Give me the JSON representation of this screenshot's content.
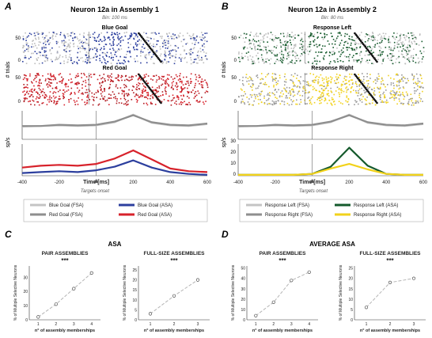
{
  "panel_letters": [
    "A",
    "B",
    "C",
    "D"
  ],
  "legend_colors": {
    "light_gray": "#c4c4c4",
    "dark_gray": "#8e8e8e",
    "blue": "#2c3f9e",
    "red": "#d7222b",
    "green": "#155a2c",
    "yellow": "#f2d21b"
  },
  "panel_A": {
    "title": "Neuron 12a in Assembly 1",
    "bin": "Bin: 100 ms",
    "raster_top_label": "Blue Goal",
    "raster_bottom_label": "Red Goal",
    "raster_ylabel": "# trials",
    "raster_ticks": [
      "50",
      "0"
    ],
    "rate_ylabel": "sp/s",
    "x_ticks": [
      "-400",
      "-200",
      "Time [ms]",
      "200",
      "400",
      "600"
    ],
    "onset_label": "Targets onset",
    "legend": [
      "Blue Goal (FSA)",
      "Red Goal (FSA)",
      "Blue Goal (ASA)",
      "Red Goal (ASA)"
    ]
  },
  "panel_B": {
    "title": "Neuron 12a in Assembly 2",
    "bin": "Bin: 80 ms",
    "raster_top_label": "Response Left",
    "raster_bottom_label": "Response Right",
    "raster_ylabel": "# trials",
    "raster_ticks": [
      "50",
      "0"
    ],
    "rate_ylabel": "sp/s",
    "rate_ticks": [
      "30",
      "20",
      "10",
      "0"
    ],
    "x_ticks": [
      "-400",
      "-200",
      "Time [ms]",
      "200",
      "400",
      "600"
    ],
    "onset_label": "Targets onset",
    "legend": [
      "Response Left (FSA)",
      "Response Right (FSA)",
      "Response Left (ASA)",
      "Response Right (ASA)"
    ]
  },
  "panel_C": {
    "title": "ASA",
    "ylabel": "% of Multiple Selective Neurons",
    "xlabel": "n° of assembly memberships",
    "sig": "***"
  },
  "panel_D": {
    "title": "AVERAGE ASA",
    "ylabel": "% of Multiple Selective Neurons",
    "xlabel": "n° of assembly memberships",
    "sig": "***"
  },
  "chart_data": [
    {
      "type": "line",
      "panel": "A",
      "title": "Neuron 12a in Assembly 1",
      "ylabel": "sp/s",
      "x": [
        -400,
        -300,
        -200,
        -100,
        0,
        100,
        200,
        300,
        400,
        500,
        600
      ],
      "xlim": [
        -400,
        600
      ],
      "series": [
        {
          "name": "Blue Goal (FSA)",
          "color": "#c4c4c4",
          "values": [
            20,
            21,
            22,
            21,
            22,
            27,
            39,
            26,
            22,
            21,
            24
          ]
        },
        {
          "name": "Red Goal (FSA)",
          "color": "#8e8e8e",
          "values": [
            21,
            21,
            23,
            22,
            23,
            28,
            38,
            27,
            23,
            22,
            25
          ]
        }
      ]
    },
    {
      "type": "line",
      "panel": "A",
      "ylabel": "sp/s",
      "x": [
        -400,
        -300,
        -200,
        -100,
        0,
        100,
        200,
        300,
        400,
        500,
        600
      ],
      "xlim": [
        -400,
        600
      ],
      "series": [
        {
          "name": "Blue Goal (ASA)",
          "color": "#2c3f9e",
          "values": [
            3,
            4,
            5,
            4,
            6,
            10,
            17,
            9,
            4,
            2,
            1
          ]
        },
        {
          "name": "Red Goal (ASA)",
          "color": "#d7222b",
          "values": [
            9,
            11,
            12,
            11,
            13,
            19,
            28,
            18,
            8,
            5,
            4
          ]
        }
      ]
    },
    {
      "type": "line",
      "panel": "B",
      "title": "Neuron 12a in Assembly 2",
      "ylabel": "sp/s",
      "x": [
        -400,
        -300,
        -200,
        -100,
        0,
        100,
        200,
        300,
        400,
        500,
        600
      ],
      "xlim": [
        -400,
        600
      ],
      "series": [
        {
          "name": "Response Left (FSA)",
          "color": "#c4c4c4",
          "values": [
            20,
            21,
            22,
            21,
            22,
            27,
            39,
            26,
            22,
            21,
            24
          ]
        },
        {
          "name": "Response Right (FSA)",
          "color": "#8e8e8e",
          "values": [
            21,
            21,
            23,
            22,
            23,
            28,
            38,
            27,
            23,
            22,
            25
          ]
        }
      ]
    },
    {
      "type": "line",
      "panel": "B",
      "ylabel": "sp/s",
      "ylim": [
        0,
        30
      ],
      "x": [
        -400,
        -300,
        -200,
        -100,
        0,
        100,
        200,
        300,
        400,
        500,
        600
      ],
      "xlim": [
        -400,
        600
      ],
      "series": [
        {
          "name": "Response Left (ASA)",
          "color": "#155a2c",
          "values": [
            1,
            1,
            1,
            1,
            2,
            10,
            31,
            11,
            2,
            1,
            1
          ]
        },
        {
          "name": "Response Right (ASA)",
          "color": "#f2d21b",
          "values": [
            1,
            1,
            1,
            1,
            2,
            8,
            13,
            7,
            2,
            1,
            1
          ]
        }
      ]
    },
    {
      "type": "line",
      "panel": "C",
      "title": "PAIR ASSEMBLIES",
      "ylabel": "% of Multiple Selective Neurons",
      "xlabel": "n° of assembly memberships",
      "x": [
        1,
        2,
        3,
        4
      ],
      "values": [
        2,
        11,
        22,
        33
      ],
      "yticks": [
        0,
        10,
        20,
        30
      ],
      "ylim": [
        0,
        38
      ]
    },
    {
      "type": "line",
      "panel": "C",
      "title": "FULL-SIZE ASSEMBLIES",
      "ylabel": "% of Multiple Selective Neurons",
      "xlabel": "n° of assembly memberships",
      "x": [
        1,
        2,
        3
      ],
      "values": [
        3,
        12,
        20
      ],
      "yticks": [
        0,
        5,
        10,
        15,
        20,
        25
      ],
      "ylim": [
        0,
        27
      ]
    },
    {
      "type": "line",
      "panel": "D",
      "title": "PAIR ASSEMBLIES",
      "ylabel": "% of Multiple Selective Neurons",
      "xlabel": "n° of assembly memberships",
      "x": [
        1,
        2,
        3,
        4
      ],
      "values": [
        4,
        17,
        38,
        46
      ],
      "yticks": [
        0,
        10,
        20,
        30,
        40,
        50
      ],
      "ylim": [
        0,
        52
      ]
    },
    {
      "type": "line",
      "panel": "D",
      "title": "FULL-SIZE ASSEMBLIES",
      "ylabel": "% of Multiple Selective Neurons",
      "xlabel": "n° of assembly memberships",
      "x": [
        1,
        2,
        3
      ],
      "values": [
        6,
        18,
        20
      ],
      "yticks": [
        0,
        5,
        10,
        15,
        20,
        25
      ],
      "ylim": [
        0,
        26
      ]
    }
  ]
}
